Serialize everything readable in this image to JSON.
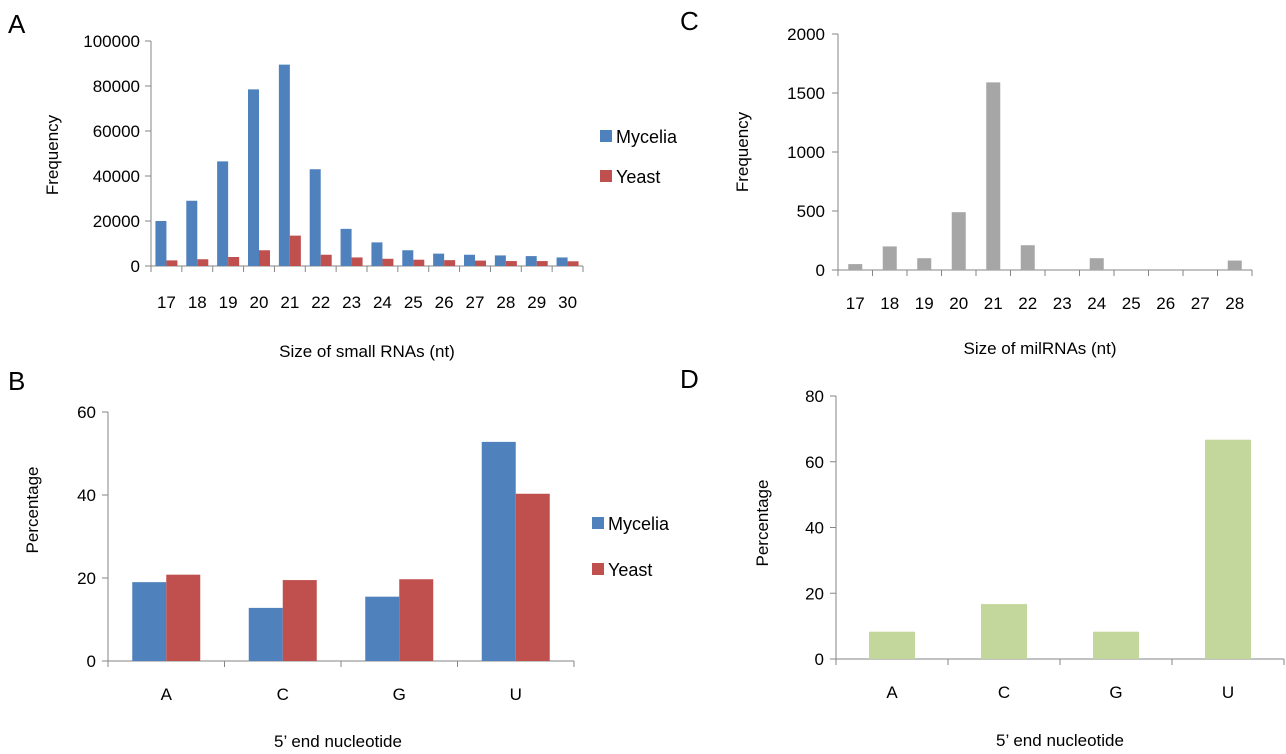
{
  "chart_data": [
    {
      "panel": "A",
      "type": "bar",
      "categories": [
        "17",
        "18",
        "19",
        "20",
        "21",
        "22",
        "23",
        "24",
        "25",
        "26",
        "27",
        "28",
        "29",
        "30"
      ],
      "series": [
        {
          "name": "Mycelia",
          "color": "#4F81BD",
          "values": [
            20000,
            29000,
            46500,
            78500,
            89500,
            43000,
            16500,
            10500,
            7000,
            5500,
            5000,
            4700,
            4400,
            3800
          ]
        },
        {
          "name": "Yeast",
          "color": "#C0504D",
          "values": [
            2500,
            3000,
            4000,
            7000,
            13500,
            5000,
            3800,
            3200,
            2800,
            2600,
            2400,
            2200,
            2200,
            2100
          ]
        }
      ],
      "xlabel": "Size of small RNAs (nt)",
      "ylabel": "Frequency",
      "ylim": [
        0,
        100000
      ],
      "yticks": [
        "0",
        "20000",
        "40000",
        "60000",
        "80000",
        "100000"
      ],
      "legend": "right"
    },
    {
      "panel": "C",
      "type": "bar",
      "categories": [
        "17",
        "18",
        "19",
        "20",
        "21",
        "22",
        "23",
        "24",
        "25",
        "26",
        "27",
        "28"
      ],
      "series": [
        {
          "color": "#A6A6A6",
          "values": [
            50,
            200,
            100,
            490,
            1590,
            210,
            0,
            100,
            0,
            0,
            0,
            80
          ]
        }
      ],
      "xlabel": "Size of milRNAs (nt)",
      "ylabel": "Frequency",
      "ylim": [
        0,
        2000
      ],
      "yticks": [
        "0",
        "500",
        "1000",
        "1500",
        "2000"
      ]
    },
    {
      "panel": "B",
      "type": "bar",
      "categories": [
        "A",
        "C",
        "G",
        "U"
      ],
      "series": [
        {
          "name": "Mycelia",
          "color": "#4F81BD",
          "values": [
            19,
            12.8,
            15.5,
            52.8
          ]
        },
        {
          "name": "Yeast",
          "color": "#C0504D",
          "values": [
            20.8,
            19.5,
            19.7,
            40.3
          ]
        }
      ],
      "xlabel": "5’ end nucleotide",
      "ylabel": "Percentage",
      "ylim": [
        0,
        60
      ],
      "yticks": [
        "0",
        "20",
        "40",
        "60"
      ],
      "legend": "right"
    },
    {
      "panel": "D",
      "type": "bar",
      "categories": [
        "A",
        "C",
        "G",
        "U"
      ],
      "series": [
        {
          "color": "#C3D69B",
          "values": [
            8.3,
            16.7,
            8.3,
            66.7
          ]
        }
      ],
      "xlabel": "5’ end nucleotide",
      "ylabel": "Percentage",
      "ylim": [
        0,
        80
      ],
      "yticks": [
        "0",
        "20",
        "40",
        "60",
        "80"
      ]
    }
  ]
}
